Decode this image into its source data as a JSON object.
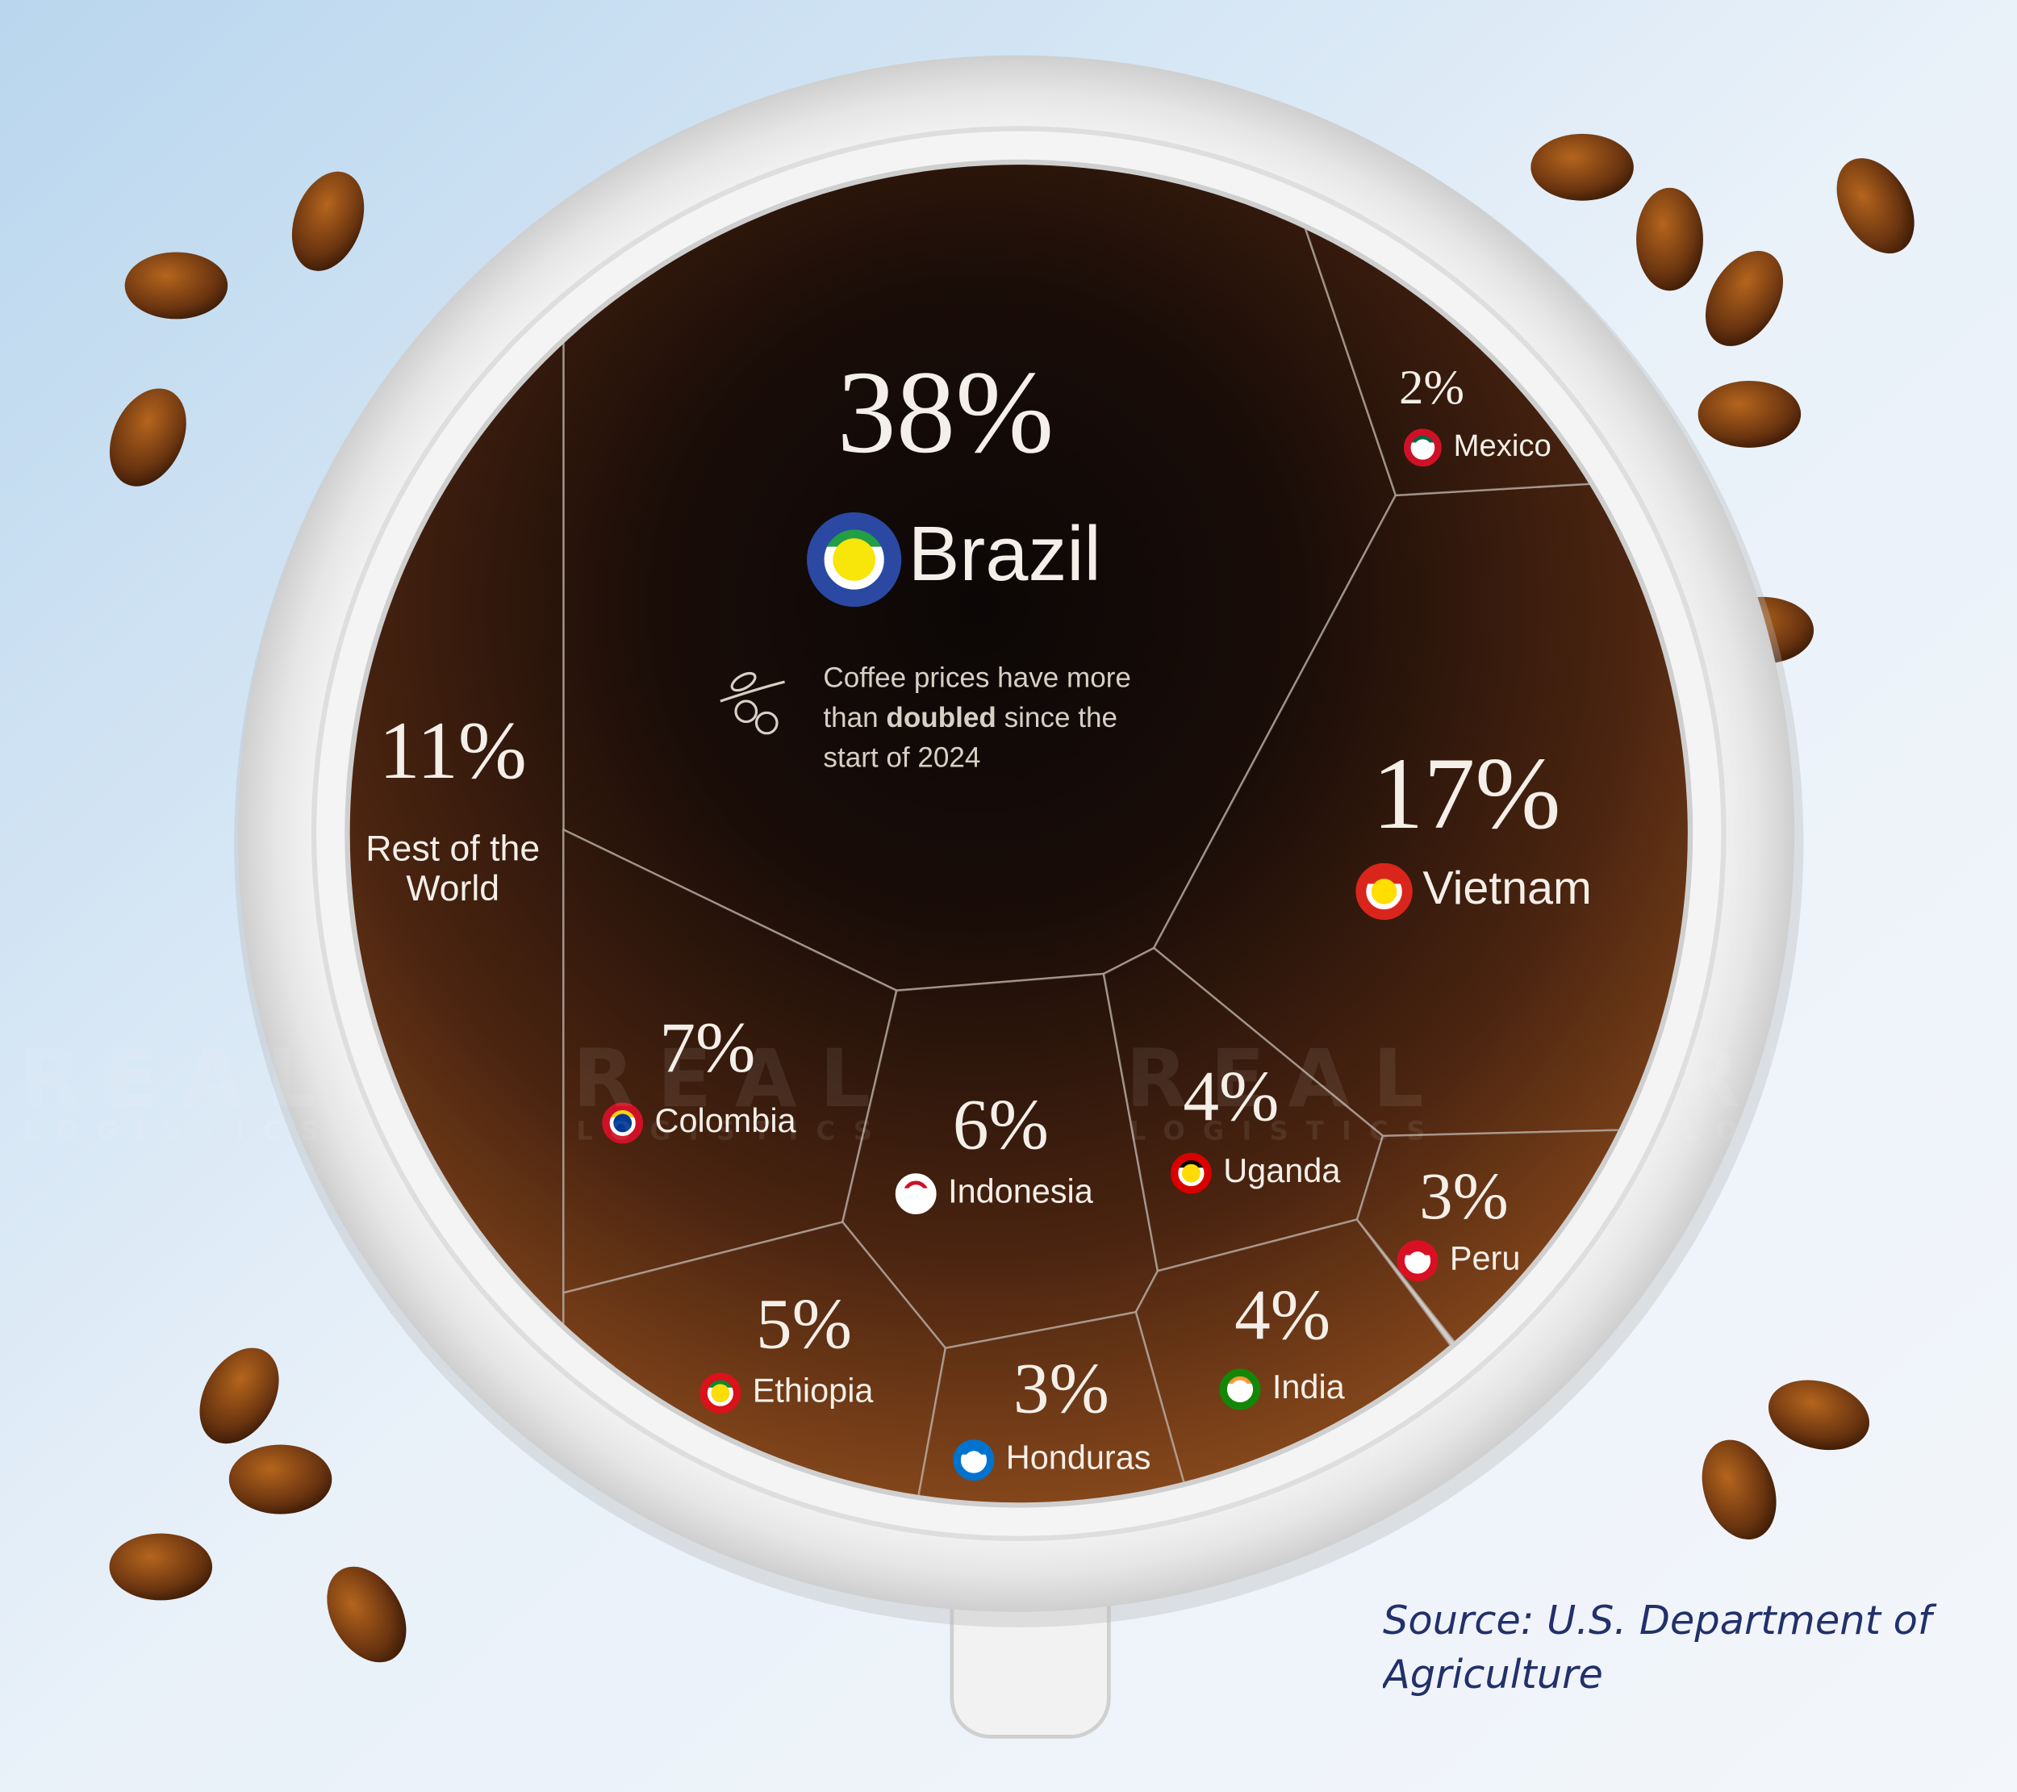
{
  "chart_data": {
    "type": "voronoi_treemap",
    "categories": [
      "Brazil",
      "Vietnam",
      "Rest of the World",
      "Colombia",
      "Indonesia",
      "Ethiopia",
      "Uganda",
      "India",
      "Honduras",
      "Peru",
      "Mexico"
    ],
    "values": [
      38,
      17,
      11,
      7,
      6,
      5,
      4,
      4,
      3,
      3,
      2
    ],
    "value_labels": [
      "38%",
      "17%",
      "11%",
      "7%",
      "6%",
      "5%",
      "4%",
      "4%",
      "3%",
      "3%",
      "2%"
    ],
    "annotation": [
      "Coffee prices have more than ",
      "doubled",
      " since the start of 2024"
    ],
    "source": "Source: U.S. Department of Agriculture",
    "watermark": [
      "REAL",
      "LOGISTICS"
    ]
  }
}
